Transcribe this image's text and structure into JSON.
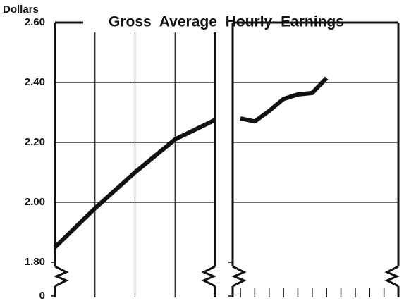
{
  "chart_data": [
    {
      "type": "line",
      "title": "Gross Average Hourly Earnings",
      "y_label": "Dollars",
      "categories": [
        null,
        null,
        null,
        null,
        null
      ],
      "series": [
        {
          "color": "#111111",
          "values": [
            1.85,
            1.98,
            2.1,
            2.21,
            2.275
          ]
        }
      ],
      "ylim": [
        1.8,
        2.6
      ],
      "yticks": [
        0,
        {
          "value": 1.8,
          "label": "1.80"
        },
        {
          "value": 2.0,
          "label": "2.00"
        },
        {
          "value": 2.2,
          "label": "2.20"
        },
        {
          "value": 2.4,
          "label": "2.40"
        },
        {
          "value": 2.6,
          "label": "2.60"
        }
      ],
      "grid": true
    },
    {
      "type": "line",
      "categories": [
        null,
        null,
        null,
        null,
        null,
        null,
        null,
        null,
        null,
        null,
        null,
        null
      ],
      "series": [
        {
          "color": "#111111",
          "values": [
            2.28,
            2.27,
            2.305,
            2.345,
            2.36,
            2.365,
            2.415,
            null,
            null,
            null,
            null,
            null
          ]
        }
      ],
      "ylim": [
        1.8,
        2.6
      ],
      "yticks": [
        0,
        {
          "value": 1.8,
          "label": "1.80"
        },
        {
          "value": 2.0,
          "label": "2.00"
        },
        {
          "value": 2.2,
          "label": "2.20"
        },
        {
          "value": 2.4,
          "label": "2.40"
        },
        {
          "value": 2.6,
          "label": "2.60"
        }
      ],
      "grid": true
    }
  ]
}
